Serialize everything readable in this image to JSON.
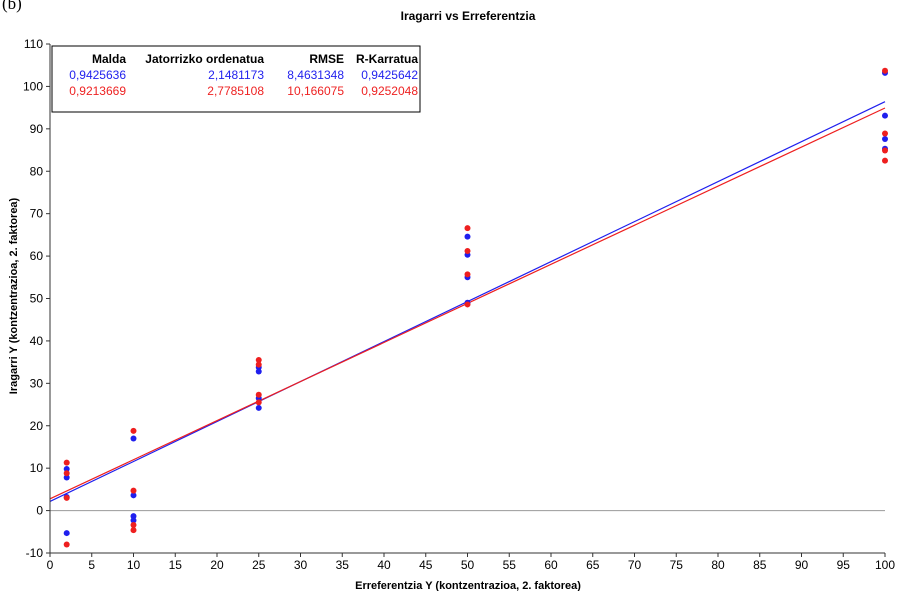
{
  "panel_label": "(b)",
  "chart_data": {
    "type": "scatter",
    "title": "Iragarri vs Erreferentzia",
    "xlabel": "Erreferentzia Y (kontzentrazioa, 2. faktorea)",
    "ylabel": "Iragarri Y (kontzentrazioa, 2. faktorea)",
    "xlim": [
      0,
      100
    ],
    "ylim": [
      -10,
      110
    ],
    "x_ticks": [
      "0",
      "5",
      "10",
      "15",
      "20",
      "25",
      "30",
      "35",
      "40",
      "45",
      "50",
      "55",
      "60",
      "65",
      "70",
      "75",
      "80",
      "85",
      "90",
      "95",
      "100"
    ],
    "y_ticks": [
      "-10",
      "0",
      "10",
      "20",
      "30",
      "40",
      "50",
      "60",
      "70",
      "80",
      "90",
      "100",
      "110"
    ],
    "grid": false,
    "legend_position": "top-left",
    "stats_table": {
      "headers": [
        "Malda",
        "Jatorrizko ordenatua",
        "RMSE",
        "R-Karratua"
      ],
      "rows": [
        {
          "color": "#2222ee",
          "values": [
            "0,9425636",
            "2,1481173",
            "8,4631348",
            "0,9425642"
          ]
        },
        {
          "color": "#ee2222",
          "values": [
            "0,9213669",
            "2,7785108",
            "10,166075",
            "0,9252048"
          ]
        }
      ]
    },
    "series": [
      {
        "color": "#1f1fee",
        "slope": 0.9425636,
        "intercept": 2.1481173,
        "points": [
          [
            2,
            9.8
          ],
          [
            2,
            7.8
          ],
          [
            2,
            3.2
          ],
          [
            2,
            -5.3
          ],
          [
            10,
            17
          ],
          [
            10,
            3.6
          ],
          [
            10,
            -1.3
          ],
          [
            10,
            -2.3
          ],
          [
            25,
            33.8
          ],
          [
            25,
            32.8
          ],
          [
            25,
            26.5
          ],
          [
            25,
            24.2
          ],
          [
            50,
            64.6
          ],
          [
            50,
            60.3
          ],
          [
            50,
            55
          ],
          [
            50,
            49
          ],
          [
            100,
            103.2
          ],
          [
            100,
            93.1
          ],
          [
            100,
            87.6
          ],
          [
            100,
            85.3
          ]
        ]
      },
      {
        "color": "#ee1f1f",
        "slope": 0.9213669,
        "intercept": 2.7785108,
        "points": [
          [
            2,
            11.3
          ],
          [
            2,
            8.8
          ],
          [
            2,
            3
          ],
          [
            2,
            -8
          ],
          [
            10,
            18.8
          ],
          [
            10,
            4.7
          ],
          [
            10,
            -3.4
          ],
          [
            10,
            -4.6
          ],
          [
            25,
            35.5
          ],
          [
            25,
            34.4
          ],
          [
            25,
            27.3
          ],
          [
            25,
            25.5
          ],
          [
            50,
            66.6
          ],
          [
            50,
            61.2
          ],
          [
            50,
            55.7
          ],
          [
            50,
            48.6
          ],
          [
            100,
            103.7
          ],
          [
            100,
            88.9
          ],
          [
            100,
            84.9
          ],
          [
            100,
            82.5
          ]
        ]
      }
    ]
  }
}
